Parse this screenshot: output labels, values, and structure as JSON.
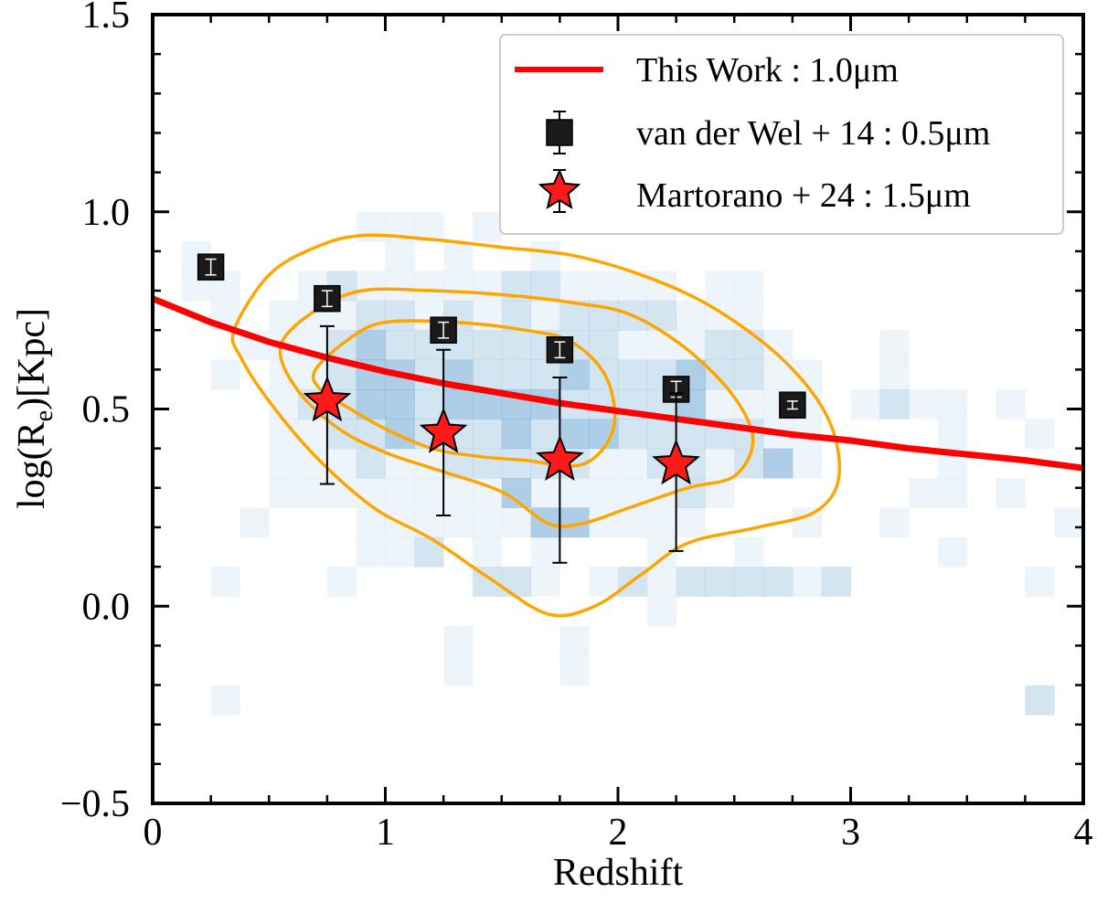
{
  "chart_data": {
    "type": "scatter",
    "xlabel": "Redshift",
    "ylabel_main": "log(R",
    "ylabel_sub": "e",
    "ylabel_tail": ")[Kpc]",
    "xlim": [
      0,
      4
    ],
    "ylim": [
      -0.5,
      1.5
    ],
    "xticks": [
      0,
      1,
      2,
      3,
      4
    ],
    "xtick_labels": [
      "0",
      "1",
      "2",
      "3",
      "4"
    ],
    "yticks": [
      -0.5,
      0.0,
      0.5,
      1.0,
      1.5
    ],
    "ytick_labels": [
      "−0.5",
      "0.0",
      "0.5",
      "1.0",
      "1.5"
    ],
    "legend_position": "top-right",
    "legend": [
      {
        "label": "This Work : 1.0μm",
        "marker": "line",
        "color": "#ff0000"
      },
      {
        "label": "van der Wel + 14 : 0.5μm",
        "marker": "square",
        "color": "#1a1a1a"
      },
      {
        "label": "Martorano + 24 : 1.5μm",
        "marker": "star",
        "color": "#ff1a1a"
      }
    ],
    "series": [
      {
        "name": "This Work : 1.0μm",
        "type": "line",
        "color": "#ff0000",
        "x": [
          0.0,
          0.25,
          0.5,
          0.75,
          1.0,
          1.25,
          1.5,
          1.75,
          2.0,
          2.25,
          2.5,
          2.75,
          3.0,
          3.25,
          3.5,
          3.75,
          4.0
        ],
        "y": [
          0.78,
          0.72,
          0.67,
          0.63,
          0.595,
          0.565,
          0.54,
          0.515,
          0.495,
          0.475,
          0.455,
          0.435,
          0.42,
          0.4,
          0.385,
          0.37,
          0.35
        ]
      },
      {
        "name": "van der Wel + 14 : 0.5μm",
        "type": "scatter",
        "marker": "square",
        "color": "#1a1a1a",
        "points": [
          {
            "x": 0.25,
            "y": 0.86,
            "err": 0.02
          },
          {
            "x": 0.75,
            "y": 0.78,
            "err": 0.02
          },
          {
            "x": 1.25,
            "y": 0.7,
            "err": 0.02
          },
          {
            "x": 1.75,
            "y": 0.65,
            "err": 0.02
          },
          {
            "x": 2.25,
            "y": 0.55,
            "err": 0.02
          },
          {
            "x": 2.75,
            "y": 0.51,
            "err": 0.01
          }
        ]
      },
      {
        "name": "Martorano + 24 : 1.5μm",
        "type": "scatter",
        "marker": "star",
        "color": "#ff1a1a",
        "points": [
          {
            "x": 0.75,
            "y": 0.52,
            "err_up": 0.19,
            "err_down": 0.21
          },
          {
            "x": 1.25,
            "y": 0.44,
            "err_up": 0.21,
            "err_down": 0.21
          },
          {
            "x": 1.75,
            "y": 0.37,
            "err_up": 0.21,
            "err_down": 0.26
          },
          {
            "x": 2.25,
            "y": 0.36,
            "err_up": 0.18,
            "err_down": 0.22
          }
        ]
      }
    ],
    "contours": {
      "color": "#ffa500",
      "levels": [
        {
          "x": [
            0.35,
            0.5,
            0.7,
            0.9,
            1.2,
            1.5,
            1.8,
            2.1,
            2.4,
            2.7,
            2.9,
            2.95,
            2.85,
            2.6,
            2.3,
            2.1,
            1.9,
            1.7,
            1.45,
            1.2,
            0.95,
            0.7,
            0.5,
            0.38
          ],
          "y": [
            0.7,
            0.84,
            0.91,
            0.94,
            0.93,
            0.91,
            0.89,
            0.84,
            0.76,
            0.63,
            0.48,
            0.33,
            0.24,
            0.2,
            0.16,
            0.08,
            0.0,
            -0.02,
            0.07,
            0.17,
            0.25,
            0.38,
            0.52,
            0.63
          ]
        },
        {
          "x": [
            0.55,
            0.7,
            0.9,
            1.2,
            1.5,
            1.8,
            2.05,
            2.3,
            2.5,
            2.58,
            2.5,
            2.3,
            2.05,
            1.85,
            1.7,
            1.5,
            1.2,
            1.0,
            0.8,
            0.62
          ],
          "y": [
            0.66,
            0.75,
            0.8,
            0.8,
            0.79,
            0.77,
            0.74,
            0.65,
            0.53,
            0.42,
            0.33,
            0.3,
            0.25,
            0.21,
            0.21,
            0.29,
            0.35,
            0.39,
            0.45,
            0.55
          ]
        },
        {
          "x": [
            0.7,
            0.85,
            1.0,
            1.3,
            1.6,
            1.8,
            1.95,
            1.98,
            1.85,
            1.6,
            1.4,
            1.2,
            1.0,
            0.85,
            0.72
          ],
          "y": [
            0.6,
            0.68,
            0.72,
            0.72,
            0.7,
            0.67,
            0.58,
            0.45,
            0.36,
            0.37,
            0.38,
            0.4,
            0.45,
            0.5,
            0.55
          ]
        }
      ]
    },
    "histogram": {
      "color": "#2a7bbf",
      "x_edges": [
        0.0,
        0.125,
        0.25,
        0.375,
        0.5,
        0.625,
        0.75,
        0.875,
        1.0,
        1.125,
        1.25,
        1.375,
        1.5,
        1.625,
        1.75,
        1.875,
        2.0,
        2.125,
        2.25,
        2.375,
        2.5,
        2.625,
        2.75,
        2.875,
        3.0,
        3.125,
        3.25,
        3.375,
        3.5,
        3.625,
        3.75,
        3.875,
        4.0
      ],
      "y_edges": [
        -0.5,
        -0.425,
        -0.35,
        -0.275,
        -0.2,
        -0.125,
        -0.05,
        0.025,
        0.1,
        0.175,
        0.25,
        0.325,
        0.4,
        0.475,
        0.55,
        0.625,
        0.7,
        0.775,
        0.85,
        0.925,
        1.0
      ],
      "counts": [
        [
          0,
          0,
          0,
          0,
          0,
          0,
          0,
          0,
          0,
          0,
          0,
          0,
          0,
          0,
          0,
          0,
          0,
          0,
          0,
          0,
          0,
          0,
          0,
          0,
          0,
          0,
          0,
          0,
          0,
          0,
          0,
          0
        ],
        [
          0,
          0,
          0,
          0,
          0,
          0,
          0,
          0,
          0,
          0,
          0,
          0,
          0,
          0,
          0,
          0,
          0,
          0,
          0,
          0,
          0,
          0,
          0,
          0,
          0,
          0,
          0,
          0,
          0,
          0,
          0,
          0
        ],
        [
          0,
          0,
          0,
          0,
          0,
          0,
          0,
          0,
          0,
          0,
          0,
          0,
          0,
          0,
          0,
          0,
          0,
          0,
          0,
          0,
          0,
          0,
          0,
          0,
          0,
          0,
          0,
          0,
          0,
          0,
          0,
          0
        ],
        [
          0,
          0,
          1,
          0,
          0,
          0,
          0,
          0,
          0,
          0,
          0,
          0,
          0,
          0,
          0,
          0,
          0,
          0,
          0,
          0,
          0,
          0,
          0,
          0,
          0,
          0,
          0,
          0,
          0,
          0,
          2,
          0
        ],
        [
          0,
          0,
          0,
          0,
          0,
          0,
          0,
          0,
          0,
          0,
          1,
          0,
          0,
          0,
          1,
          0,
          0,
          0,
          0,
          0,
          0,
          0,
          0,
          0,
          0,
          0,
          0,
          0,
          0,
          0,
          0,
          0
        ],
        [
          0,
          0,
          0,
          0,
          0,
          0,
          0,
          0,
          0,
          0,
          1,
          0,
          0,
          0,
          1,
          0,
          0,
          0,
          0,
          0,
          0,
          0,
          0,
          0,
          0,
          0,
          0,
          0,
          0,
          0,
          0,
          0
        ],
        [
          0,
          0,
          0,
          0,
          0,
          0,
          0,
          0,
          0,
          0,
          0,
          0,
          0,
          0,
          0,
          0,
          0,
          1,
          0,
          0,
          0,
          0,
          0,
          0,
          0,
          0,
          0,
          0,
          0,
          0,
          0,
          0
        ],
        [
          0,
          0,
          1,
          0,
          0,
          0,
          1,
          0,
          0,
          0,
          0,
          2,
          2,
          1,
          0,
          1,
          2,
          1,
          2,
          2,
          2,
          2,
          1,
          2,
          0,
          0,
          0,
          0,
          0,
          0,
          1,
          0
        ],
        [
          0,
          0,
          0,
          0,
          0,
          0,
          0,
          1,
          1,
          2,
          0,
          1,
          0,
          1,
          0,
          0,
          0,
          1,
          0,
          0,
          1,
          0,
          0,
          0,
          0,
          0,
          0,
          1,
          0,
          0,
          0,
          0
        ],
        [
          0,
          0,
          0,
          1,
          0,
          0,
          0,
          1,
          1,
          1,
          1,
          1,
          1,
          3,
          3,
          1,
          1,
          1,
          1,
          0,
          0,
          0,
          1,
          0,
          0,
          1,
          0,
          0,
          0,
          0,
          0,
          1
        ],
        [
          0,
          0,
          0,
          0,
          1,
          1,
          1,
          1,
          1,
          1,
          1,
          1,
          3,
          1,
          1,
          1,
          1,
          1,
          2,
          1,
          0,
          0,
          0,
          0,
          0,
          0,
          1,
          1,
          0,
          1,
          0,
          0
        ],
        [
          0,
          0,
          0,
          0,
          1,
          1,
          1,
          2,
          1,
          1,
          2,
          2,
          2,
          2,
          2,
          1,
          1,
          2,
          2,
          1,
          2,
          3,
          1,
          0,
          0,
          0,
          0,
          1,
          0,
          0,
          0,
          0
        ],
        [
          0,
          0,
          0,
          0,
          1,
          1,
          2,
          2,
          3,
          2,
          2,
          2,
          3,
          2,
          3,
          3,
          2,
          2,
          2,
          2,
          2,
          1,
          1,
          0,
          0,
          0,
          0,
          1,
          0,
          0,
          1,
          0
        ],
        [
          0,
          0,
          0,
          0,
          1,
          2,
          2,
          3,
          3,
          2,
          3,
          3,
          3,
          3,
          2,
          2,
          2,
          2,
          3,
          1,
          1,
          1,
          1,
          0,
          1,
          2,
          1,
          1,
          0,
          1,
          0,
          0
        ],
        [
          0,
          0,
          1,
          0,
          1,
          1,
          2,
          3,
          3,
          2,
          3,
          2,
          2,
          2,
          3,
          2,
          2,
          2,
          3,
          2,
          2,
          1,
          1,
          0,
          0,
          1,
          0,
          0,
          0,
          0,
          0,
          0
        ],
        [
          0,
          0,
          0,
          1,
          1,
          1,
          2,
          3,
          2,
          2,
          2,
          2,
          2,
          2,
          2,
          2,
          1,
          1,
          1,
          2,
          2,
          1,
          0,
          0,
          0,
          1,
          0,
          0,
          0,
          0,
          0,
          0
        ],
        [
          0,
          0,
          1,
          0,
          1,
          1,
          1,
          2,
          2,
          1,
          2,
          1,
          2,
          1,
          2,
          2,
          2,
          2,
          1,
          1,
          1,
          0,
          0,
          0,
          0,
          0,
          0,
          0,
          0,
          0,
          0,
          0
        ],
        [
          0,
          1,
          1,
          0,
          0,
          1,
          2,
          1,
          1,
          1,
          1,
          1,
          2,
          2,
          1,
          1,
          1,
          1,
          0,
          1,
          1,
          0,
          0,
          0,
          0,
          0,
          0,
          0,
          0,
          0,
          0,
          0
        ],
        [
          0,
          1,
          0,
          0,
          0,
          0,
          0,
          0,
          1,
          0,
          1,
          0,
          0,
          1,
          0,
          0,
          0,
          0,
          0,
          0,
          0,
          0,
          0,
          0,
          0,
          0,
          0,
          0,
          0,
          0,
          0,
          0
        ],
        [
          0,
          0,
          0,
          0,
          0,
          0,
          0,
          1,
          1,
          1,
          0,
          1,
          0,
          0,
          0,
          0,
          0,
          0,
          0,
          0,
          0,
          0,
          0,
          0,
          0,
          0,
          0,
          0,
          0,
          0,
          0,
          0
        ]
      ]
    }
  }
}
